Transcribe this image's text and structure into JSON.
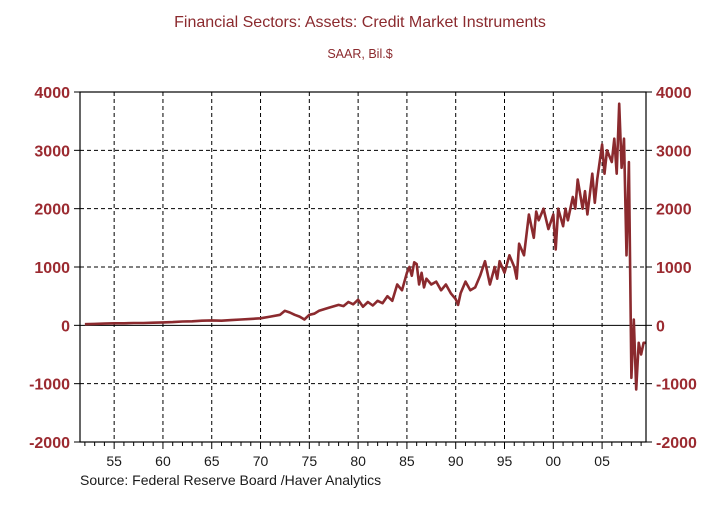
{
  "chart_data": {
    "type": "line",
    "title": "Financial Sectors: Assets: Credit Market Instruments",
    "subtitle": "SAAR, Bil.$",
    "source": "Source:  Federal Reserve Board /Haver Analytics",
    "xlabel": "",
    "ylabel": "",
    "xlim": [
      1951.5,
      2009.5
    ],
    "ylim": [
      -2000,
      4000
    ],
    "yticks": [
      4000,
      3000,
      2000,
      1000,
      0,
      -1000,
      -2000
    ],
    "ytick_labels": [
      "4000",
      "3000",
      "2000",
      "1000",
      "0",
      "-1000",
      "-2000"
    ],
    "xticks": [
      1955,
      1960,
      1965,
      1970,
      1975,
      1980,
      1985,
      1990,
      1995,
      2000,
      2005
    ],
    "xtick_labels": [
      "55",
      "60",
      "65",
      "70",
      "75",
      "80",
      "85",
      "90",
      "95",
      "00",
      "05"
    ],
    "grid": true,
    "colors": {
      "series": "#8b2a2e",
      "text": "#8b2a2e"
    },
    "series": [
      {
        "name": "Financial Sectors: Assets: Credit Market Instruments",
        "x": [
          1952.0,
          1953.0,
          1954.0,
          1955.0,
          1956.0,
          1957.0,
          1958.0,
          1959.0,
          1960.0,
          1961.0,
          1962.0,
          1963.0,
          1964.0,
          1965.0,
          1966.0,
          1967.0,
          1968.0,
          1969.0,
          1970.0,
          1971.0,
          1972.0,
          1972.5,
          1973.0,
          1973.5,
          1974.0,
          1974.5,
          1975.0,
          1975.5,
          1976.0,
          1977.0,
          1978.0,
          1978.5,
          1979.0,
          1979.5,
          1980.0,
          1980.5,
          1981.0,
          1981.5,
          1982.0,
          1982.5,
          1983.0,
          1983.5,
          1984.0,
          1984.5,
          1985.0,
          1985.25,
          1985.5,
          1985.75,
          1986.0,
          1986.25,
          1986.5,
          1986.75,
          1987.0,
          1987.5,
          1988.0,
          1988.5,
          1989.0,
          1989.5,
          1990.0,
          1990.25,
          1990.5,
          1991.0,
          1991.5,
          1992.0,
          1992.5,
          1993.0,
          1993.5,
          1994.0,
          1994.25,
          1994.5,
          1995.0,
          1995.5,
          1996.0,
          1996.25,
          1996.5,
          1997.0,
          1997.5,
          1998.0,
          1998.25,
          1998.5,
          1999.0,
          1999.5,
          2000.0,
          2000.25,
          2000.5,
          2001.0,
          2001.25,
          2001.5,
          2002.0,
          2002.25,
          2002.5,
          2003.0,
          2003.25,
          2003.5,
          2004.0,
          2004.25,
          2004.5,
          2005.0,
          2005.25,
          2005.5,
          2006.0,
          2006.25,
          2006.5,
          2006.75,
          2007.0,
          2007.25,
          2007.5,
          2007.75,
          2008.0,
          2008.25,
          2008.5,
          2008.75,
          2009.0,
          2009.25,
          2009.5
        ],
        "values": [
          20,
          25,
          30,
          35,
          35,
          40,
          40,
          45,
          50,
          55,
          65,
          70,
          80,
          85,
          80,
          90,
          100,
          110,
          120,
          150,
          180,
          250,
          220,
          180,
          150,
          100,
          180,
          200,
          250,
          300,
          350,
          330,
          400,
          360,
          440,
          320,
          400,
          340,
          420,
          380,
          500,
          420,
          700,
          600,
          900,
          1000,
          850,
          1080,
          1050,
          700,
          900,
          650,
          800,
          700,
          750,
          600,
          700,
          550,
          450,
          350,
          550,
          750,
          600,
          650,
          850,
          1100,
          700,
          1000,
          800,
          1100,
          900,
          1200,
          1000,
          800,
          1400,
          1200,
          1900,
          1500,
          1950,
          1800,
          2000,
          1650,
          1900,
          1300,
          2000,
          1700,
          2000,
          1800,
          2200,
          2000,
          2500,
          2000,
          2300,
          1900,
          2600,
          2100,
          2500,
          3100,
          2600,
          3000,
          2800,
          3200,
          2600,
          3800,
          2700,
          3200,
          1200,
          2800,
          -900,
          100,
          -1100,
          -300,
          -500,
          -300,
          -300
        ]
      }
    ]
  }
}
